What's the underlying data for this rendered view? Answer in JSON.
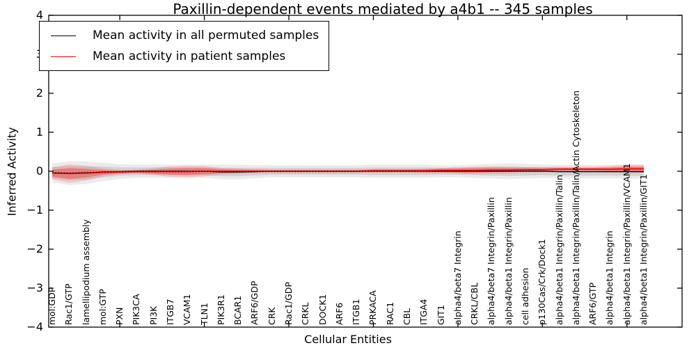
{
  "chart_data": {
    "type": "line",
    "title": "Paxillin-dependent events mediated by a4b1 -- 345 samples",
    "xlabel": "Cellular Entities",
    "ylabel": "Inferred Activity",
    "ylim": [
      -4,
      4
    ],
    "yticks": [
      4,
      3,
      2,
      1,
      0,
      -1,
      -2,
      -3,
      -4
    ],
    "ytick_labels": [
      "4",
      "3",
      "2",
      "1",
      "0",
      "−1",
      "−2",
      "−3",
      "−4"
    ],
    "xticks_at": [
      5,
      10,
      15,
      20,
      25,
      30,
      35
    ],
    "grid": false,
    "legend_position": "upper left",
    "band_meaning": "shaded band = spread (std) around each mean line",
    "categories": [
      "mol:GDP",
      "Rac1/GTP",
      "lamellipodium assembly",
      "mol:GTP",
      "PXN",
      "PIK3CA",
      "PI3K",
      "ITGB7",
      "VCAM1",
      "TLN1",
      "PIK3R1",
      "BCAR1",
      "ARF6/GDP",
      "CRK",
      "Rac1/GDP",
      "CRKL",
      "DOCK1",
      "ARF6",
      "ITGB1",
      "PRKACA",
      "RAC1",
      "CBL",
      "ITGA4",
      "GIT1",
      "alpha4/beta7 Integrin",
      "CRKL/CBL",
      "alpha4/beta7 Integrin/Paxillin",
      "alpha4/beta1 Integrin/Paxillin",
      "cell adhesion",
      "p130Cas/Crk/Dock1",
      "alpha4/beta1 Integrin/Paxillin/Talin",
      "alpha4/beta1 Integrin/Paxillin/Talin/Actin Cytoskeleton",
      "ARF6/GTP",
      "alpha4/beta1 Integrin",
      "alpha4/beta1 Integrin/Paxillin/VCAM1",
      "alpha4/beta1 Integrin/Paxillin/GIT1"
    ],
    "series": [
      {
        "name": "Mean activity in all permuted samples",
        "color": "#000000",
        "mean": [
          -0.04,
          -0.05,
          -0.04,
          -0.02,
          -0.01,
          0,
          0,
          0,
          0,
          0,
          -0.02,
          -0.02,
          -0.01,
          0,
          0,
          0,
          0,
          0,
          0,
          0,
          0,
          0,
          0,
          0,
          0,
          0,
          0,
          0,
          0,
          0,
          -0.01,
          -0.01,
          -0.01,
          -0.01,
          -0.01,
          -0.01
        ],
        "std": [
          0.14,
          0.18,
          0.17,
          0.14,
          0.11,
          0.1,
          0.1,
          0.1,
          0.1,
          0.1,
          0.11,
          0.11,
          0.1,
          0.09,
          0.09,
          0.09,
          0.09,
          0.09,
          0.09,
          0.1,
          0.1,
          0.1,
          0.1,
          0.09,
          0.09,
          0.1,
          0.11,
          0.12,
          0.11,
          0.1,
          0.1,
          0.1,
          0.1,
          0.1,
          0.11,
          0.11
        ]
      },
      {
        "name": "Mean activity in patient samples",
        "color": "#ff0000",
        "mean": [
          -0.05,
          -0.06,
          -0.05,
          -0.03,
          -0.02,
          -0.01,
          -0.01,
          -0.01,
          -0.01,
          0,
          0,
          0,
          0,
          0,
          0,
          0,
          0,
          0,
          0,
          0.01,
          0.01,
          0.01,
          0.01,
          0.02,
          0.02,
          0.02,
          0.03,
          0.03,
          0.04,
          0.04,
          0.05,
          0.05,
          0.05,
          0.05,
          0.06,
          0.06
        ],
        "std": [
          0.09,
          0.14,
          0.11,
          0.06,
          0.035,
          0.03,
          0.05,
          0.08,
          0.09,
          0.08,
          0.05,
          0.04,
          0.03,
          0.025,
          0.025,
          0.025,
          0.025,
          0.025,
          0.025,
          0.03,
          0.03,
          0.03,
          0.035,
          0.04,
          0.05,
          0.055,
          0.055,
          0.05,
          0.04,
          0.04,
          0.04,
          0.04,
          0.04,
          0.05,
          0.06,
          0.06
        ]
      }
    ]
  }
}
